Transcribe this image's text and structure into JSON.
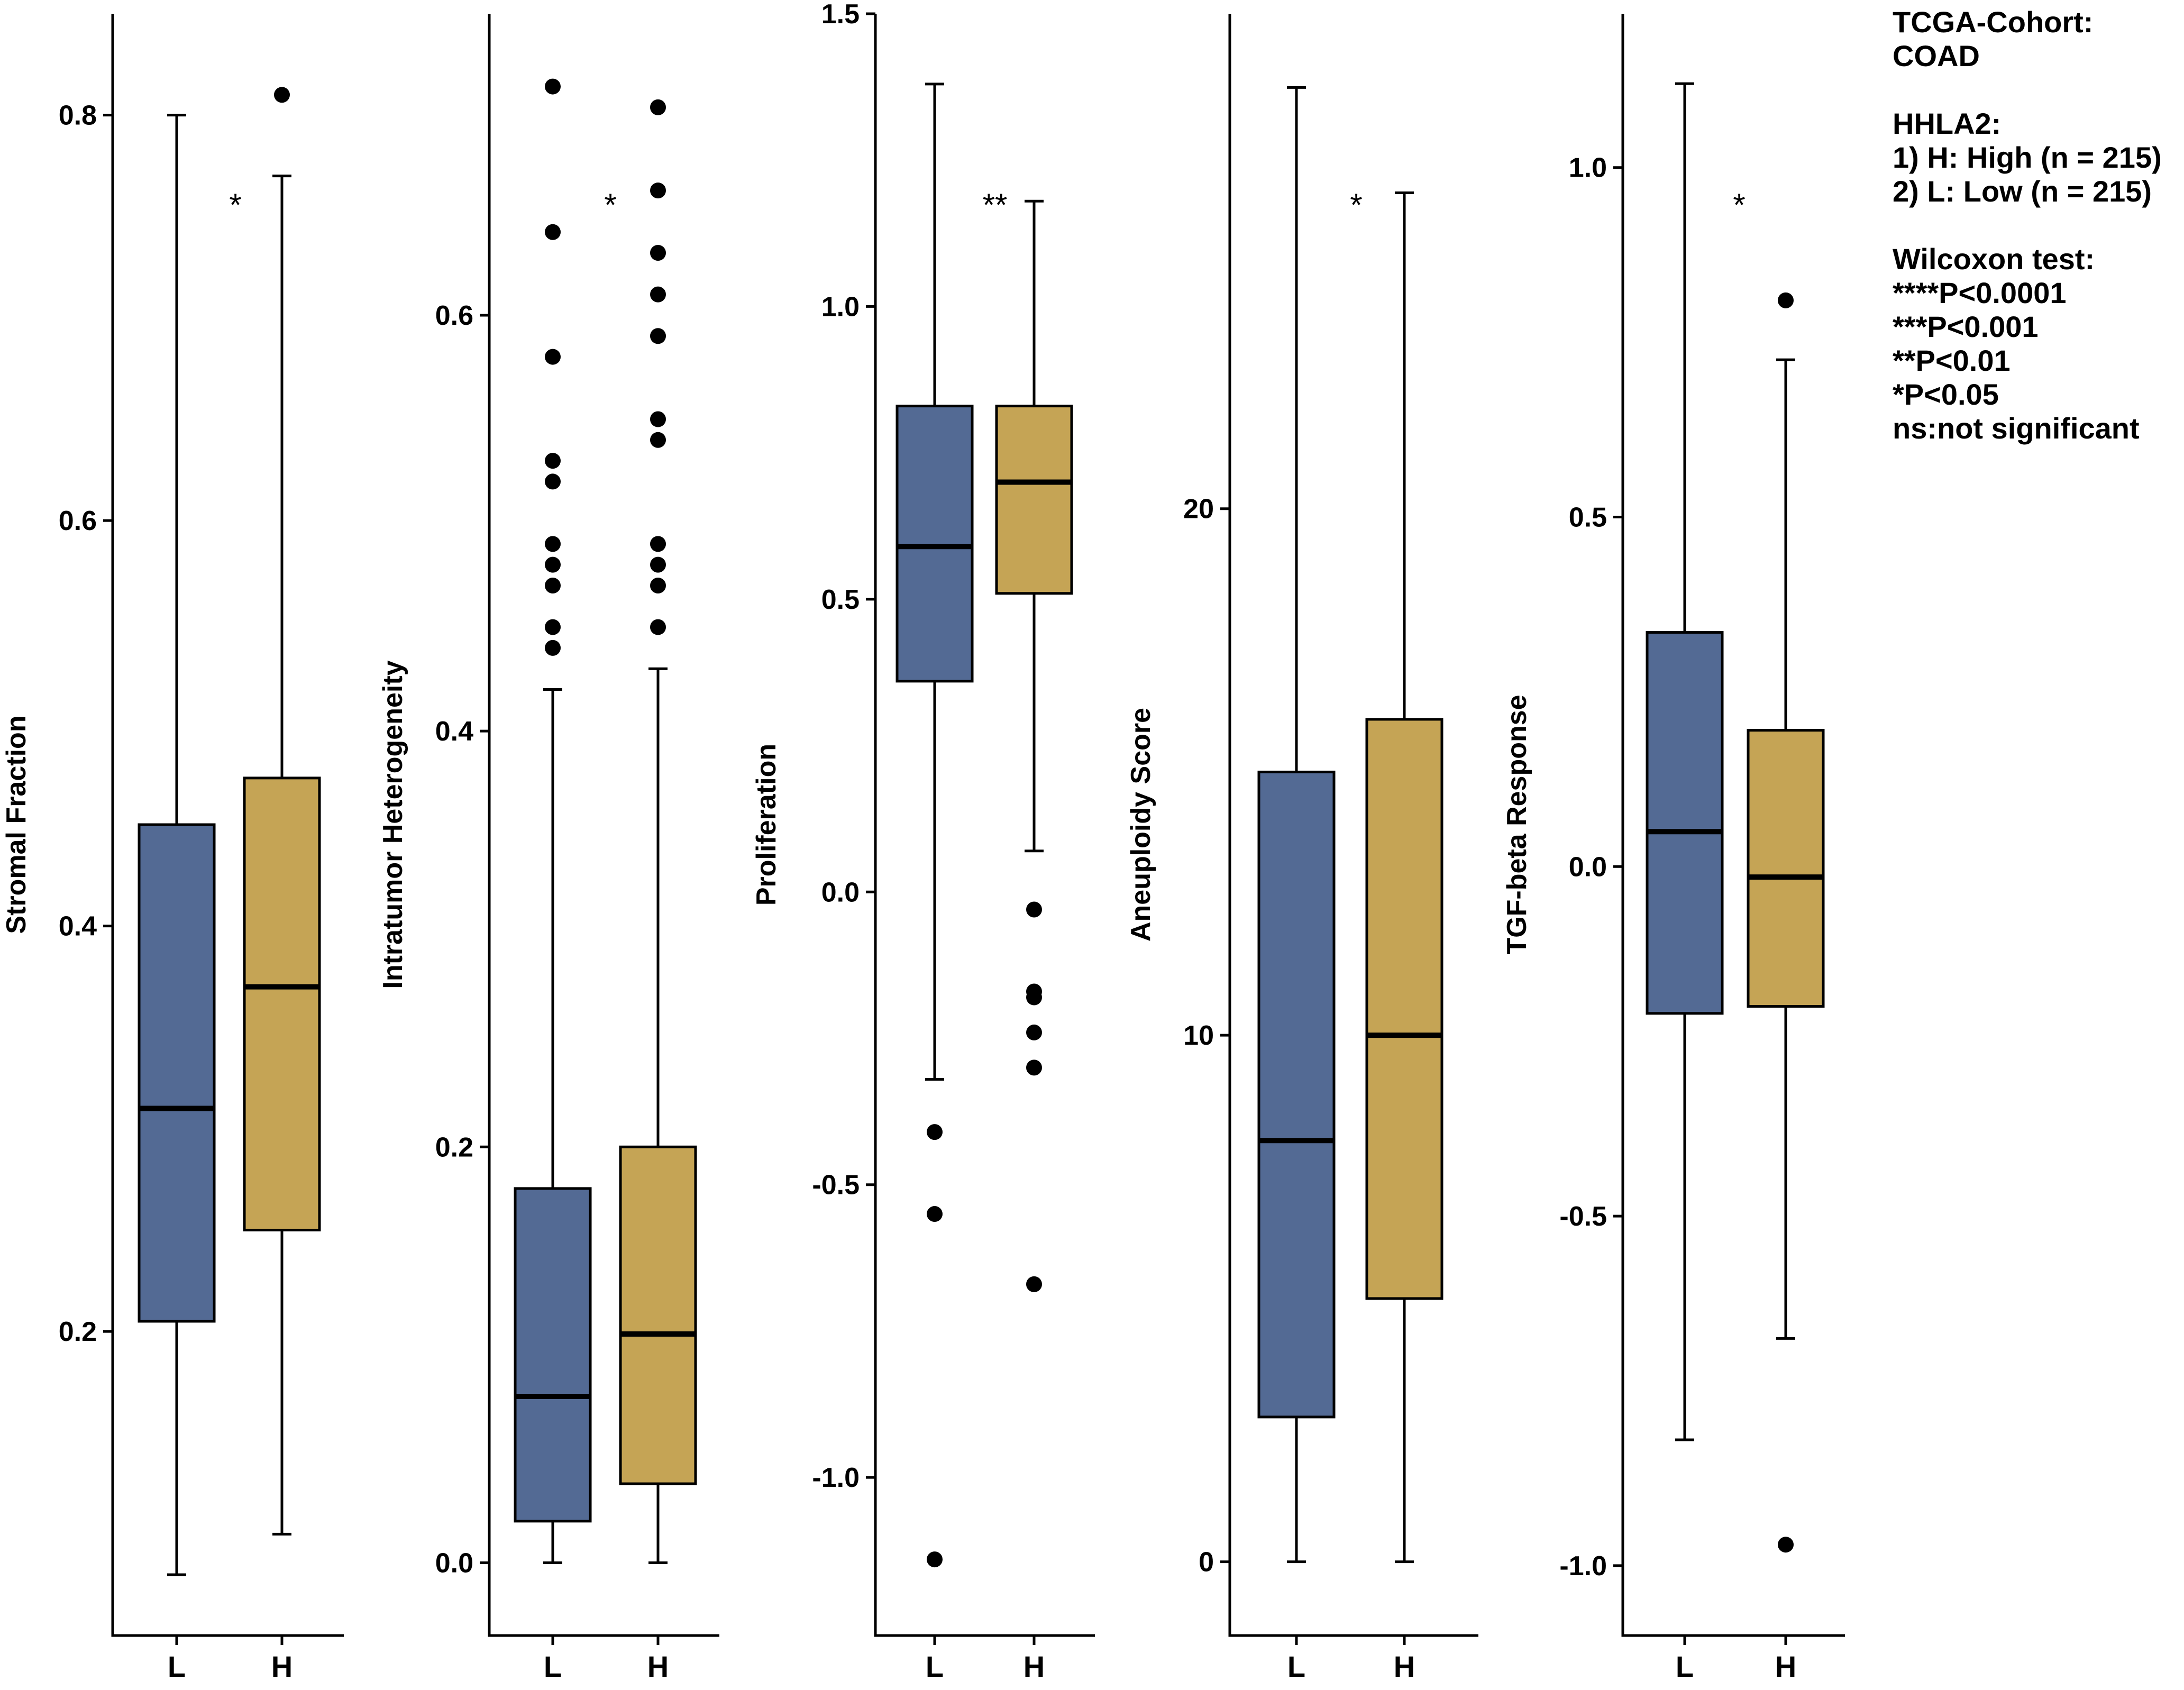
{
  "chart_data": {
    "type": "boxplot",
    "colors": {
      "L": "#536a94",
      "H": "#c5a455",
      "stroke": "#000000"
    },
    "categories": [
      "L",
      "H"
    ],
    "panels": [
      {
        "ylabel": "Stromal Fraction",
        "ylim": [
          0.05,
          0.85
        ],
        "yticks": [
          0.2,
          0.4,
          0.6,
          0.8
        ],
        "ytick_labels": [
          "0.2",
          "0.4",
          "0.6",
          "0.8"
        ],
        "significance": "*",
        "boxes": [
          {
            "group": "L",
            "lower_whisker": 0.08,
            "q1": 0.205,
            "median": 0.31,
            "q3": 0.45,
            "upper_whisker": 0.8,
            "outliers": []
          },
          {
            "group": "H",
            "lower_whisker": 0.1,
            "q1": 0.25,
            "median": 0.37,
            "q3": 0.473,
            "upper_whisker": 0.77,
            "outliers": [
              0.81
            ]
          }
        ]
      },
      {
        "ylabel": "Intratumor Heterogeneity",
        "ylim": [
          -0.035,
          0.745
        ],
        "yticks": [
          0.0,
          0.2,
          0.4,
          0.6
        ],
        "ytick_labels": [
          "0.0",
          "0.2",
          "0.4",
          "0.6"
        ],
        "significance": "*",
        "boxes": [
          {
            "group": "L",
            "lower_whisker": 0.0,
            "q1": 0.02,
            "median": 0.08,
            "q3": 0.18,
            "upper_whisker": 0.42,
            "outliers": [
              0.44,
              0.45,
              0.47,
              0.48,
              0.49,
              0.52,
              0.53,
              0.58,
              0.64,
              0.71
            ]
          },
          {
            "group": "H",
            "lower_whisker": 0.0,
            "q1": 0.038,
            "median": 0.11,
            "q3": 0.2,
            "upper_whisker": 0.43,
            "outliers": [
              0.45,
              0.47,
              0.48,
              0.49,
              0.54,
              0.55,
              0.59,
              0.61,
              0.63,
              0.66,
              0.7
            ]
          }
        ]
      },
      {
        "ylabel": "Proliferation",
        "ylim": [
          -1.27,
          1.5
        ],
        "yticks": [
          -1.0,
          -0.5,
          0.0,
          0.5,
          1.0,
          1.5
        ],
        "ytick_labels": [
          "-1.0",
          "-0.5",
          "0.0",
          "0.5",
          "1.0",
          "1.5"
        ],
        "significance": "**",
        "boxes": [
          {
            "group": "L",
            "lower_whisker": -0.32,
            "q1": 0.36,
            "median": 0.59,
            "q3": 0.83,
            "upper_whisker": 1.38,
            "outliers": [
              -0.41,
              -0.55,
              -1.14
            ]
          },
          {
            "group": "H",
            "lower_whisker": 0.07,
            "q1": 0.51,
            "median": 0.7,
            "q3": 0.83,
            "upper_whisker": 1.18,
            "outliers": [
              -0.03,
              -0.17,
              -0.18,
              -0.24,
              -0.3,
              -0.67
            ]
          }
        ]
      },
      {
        "ylabel": "Aneuploidy Score",
        "ylim": [
          -1.4,
          29.4
        ],
        "yticks": [
          0,
          10,
          20
        ],
        "ytick_labels": [
          "0",
          "10",
          "20"
        ],
        "significance": "*",
        "boxes": [
          {
            "group": "L",
            "lower_whisker": 0,
            "q1": 2.75,
            "median": 8,
            "q3": 15,
            "upper_whisker": 28,
            "outliers": []
          },
          {
            "group": "H",
            "lower_whisker": 0,
            "q1": 5,
            "median": 10,
            "q3": 16,
            "upper_whisker": 26,
            "outliers": []
          }
        ]
      },
      {
        "ylabel": "TGF-beta Response",
        "ylim": [
          -1.1,
          1.22
        ],
        "yticks": [
          -1.0,
          -0.5,
          0.0,
          0.5,
          1.0
        ],
        "ytick_labels": [
          "-1.0",
          "-0.5",
          "0.0",
          "0.5",
          "1.0"
        ],
        "significance": "*",
        "boxes": [
          {
            "group": "L",
            "lower_whisker": -0.82,
            "q1": -0.21,
            "median": 0.05,
            "q3": 0.335,
            "upper_whisker": 1.12,
            "outliers": []
          },
          {
            "group": "H",
            "lower_whisker": -0.675,
            "q1": -0.2,
            "median": -0.015,
            "q3": 0.195,
            "upper_whisker": 0.725,
            "outliers": [
              0.81,
              -0.97
            ]
          }
        ]
      }
    ]
  },
  "legend": {
    "cohort_title": "TCGA-Cohort:",
    "cohort_name": "COAD",
    "gene_title": "HHLA2:",
    "group_high": "1) H: High (n = 215)",
    "group_low": "2) L: Low (n = 215)",
    "test_title": "Wilcoxon test:",
    "sig_4": "****P<0.0001",
    "sig_3": "***P<0.001",
    "sig_2": "**P<0.01",
    "sig_1": "*P<0.05",
    "sig_ns": "ns:not significant"
  }
}
